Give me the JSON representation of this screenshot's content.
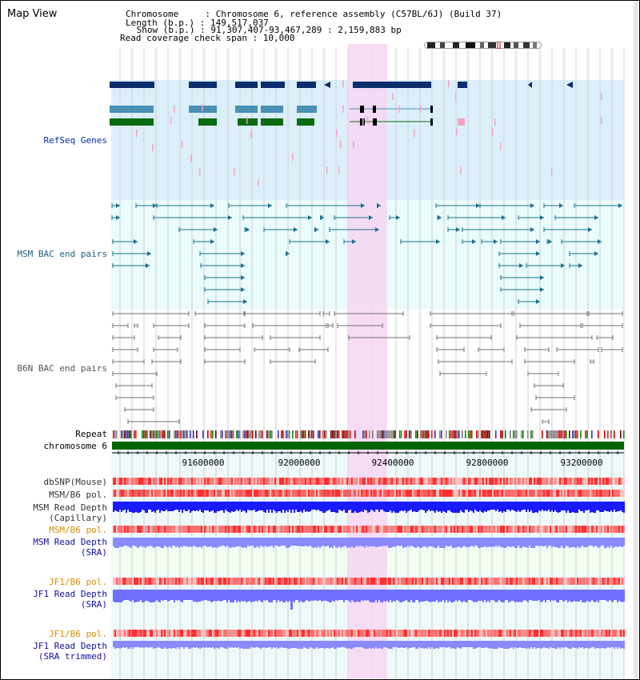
{
  "app": {
    "title": "Map View"
  },
  "header": {
    "chromosome_line": "Chromosome     : Chromosome 6, reference assembly (C57BL/6J) (Build 37)",
    "length_line": "Length (b.p.) : 149,517,037",
    "show_line": " Show (b.p.) : 91,307,407-93,467,289 : 2,159,883 bp",
    "span_line": "Read coverage check span : 10,000"
  },
  "colors": {
    "refseq_bg": "#dbeffa",
    "msm_bac_bg": "#e9fbfb",
    "b6n_bac_bg": "#ffffff",
    "highlight": "#f7d6f3",
    "chrom_bar": "#006400",
    "gene_navy": "#0a2d6b",
    "gene_teal": "#4a90b5",
    "gene_green": "#0a6b10",
    "bac_teal": "#1c7090",
    "b6_gray": "#707070",
    "pink_feature": "#f6a0c4",
    "msm_depth": "#1a1aff",
    "sra_depth": "#8a8aff",
    "orange_label": "#e08c00",
    "blue_label": "#1010a0"
  },
  "tracks": {
    "refseq": {
      "label": "RefSeq Genes"
    },
    "msm_bac": {
      "label": "MSM BAC end pairs"
    },
    "b6n_bac": {
      "label": "B6N BAC end pairs"
    },
    "repeat": {
      "label": "Repeat"
    },
    "chromosome": {
      "label": "chromosome 6"
    },
    "dbsnp": {
      "label": "dbSNP(Mouse)"
    },
    "msm_b6_pol_1": {
      "label": "MSM/B6 pol."
    },
    "msm_read_depth_cap": {
      "line1": "MSM Read Depth",
      "line2": "(Capillary)"
    },
    "msm_b6_pol_2": {
      "label": "MSM/B6 pol."
    },
    "msm_read_depth_sra": {
      "line1": "MSM Read Depth",
      "line2": "(SRA)"
    },
    "jf1_b6_pol_1": {
      "label": "JF1/B6 pol."
    },
    "jf1_read_depth_sra": {
      "line1": "JF1 Read Depth",
      "line2": "(SRA)"
    },
    "jf1_b6_pol_2": {
      "label": "JF1/B6 pol."
    },
    "jf1_read_depth_trim": {
      "line1": "JF1 Read Depth",
      "line2": "(SRA trimmed)"
    }
  },
  "axis": {
    "ticks": [
      "91600000",
      "92000000",
      "92400000",
      "92800000",
      "93200000"
    ]
  }
}
